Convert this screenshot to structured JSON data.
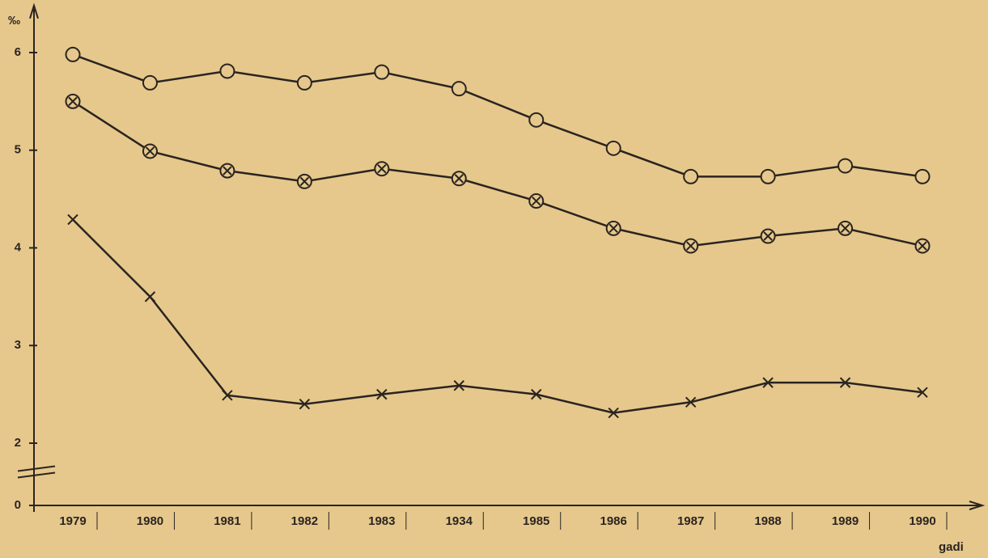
{
  "chart_data": {
    "type": "line",
    "y_label": "‰",
    "x_label": "gadi",
    "categories": [
      "1979",
      "1980",
      "1981",
      "1982",
      "1983",
      "1934",
      "1985",
      "1986",
      "1987",
      "1988",
      "1989",
      "1990"
    ],
    "series": [
      {
        "marker": "circle",
        "color": "#2a2420",
        "values": [
          5.98,
          5.69,
          5.81,
          5.69,
          5.8,
          5.63,
          5.31,
          5.02,
          4.73,
          4.73,
          4.84,
          4.73
        ]
      },
      {
        "marker": "circle-x",
        "color": "#2a2420",
        "values": [
          5.5,
          4.99,
          4.79,
          4.68,
          4.81,
          4.71,
          4.48,
          4.2,
          4.02,
          4.12,
          4.2,
          4.02
        ]
      },
      {
        "marker": "x",
        "color": "#2a2420",
        "values": [
          4.29,
          3.5,
          2.49,
          2.4,
          2.5,
          2.59,
          2.5,
          2.31,
          2.42,
          2.62,
          2.62,
          2.52
        ]
      }
    ],
    "ylim": [
      0,
      6.2
    ],
    "yticks": [
      0,
      2,
      3,
      4,
      5,
      6
    ],
    "ybreak": [
      0,
      2
    ],
    "grid": false
  }
}
